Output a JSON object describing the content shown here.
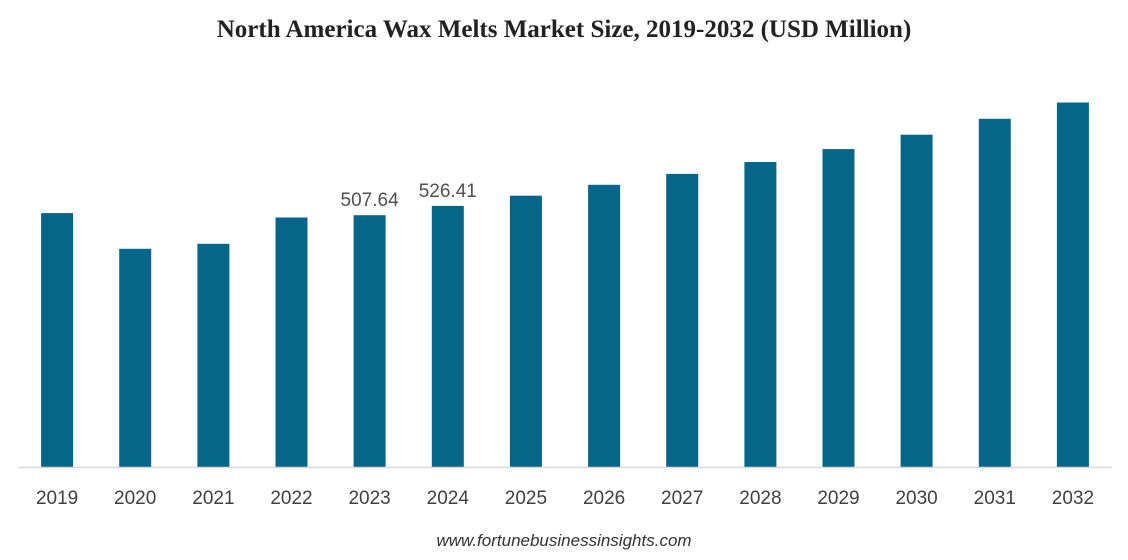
{
  "title": "North America Wax Melts Market Size, 2019-2032 (USD Million)",
  "source": "www.fortunebusinessinsights.com",
  "colors": {
    "bar": "#066588",
    "axis": "#d9d9d9",
    "tick_text": "#404040",
    "label_text": "#505050"
  },
  "chart_data": {
    "type": "bar",
    "title": "North America Wax Melts Market Size, 2019-2032 (USD Million)",
    "xlabel": "",
    "ylabel": "",
    "categories": [
      "2019",
      "2020",
      "2021",
      "2022",
      "2023",
      "2024",
      "2025",
      "2026",
      "2027",
      "2028",
      "2029",
      "2030",
      "2031",
      "2032"
    ],
    "values": [
      512,
      440,
      450,
      503,
      507.64,
      526.41,
      547,
      569,
      591,
      615,
      641,
      670,
      702,
      735
    ],
    "data_labels": [
      null,
      null,
      null,
      null,
      "507.64",
      "526.41",
      null,
      null,
      null,
      null,
      null,
      null,
      null,
      null
    ],
    "ylim": [
      0,
      740
    ],
    "grid": false,
    "legend": "none"
  }
}
